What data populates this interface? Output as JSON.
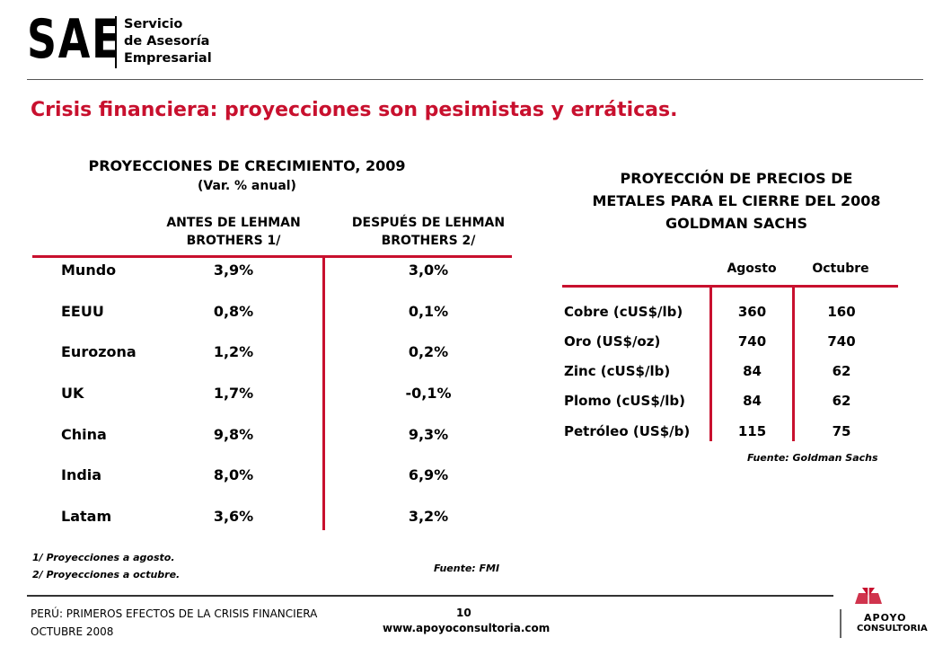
{
  "header": {
    "logo_main": "SAE",
    "logo_sub": [
      "Servicio",
      "de Asesoría",
      "Empresarial"
    ]
  },
  "title": "Crisis financiera: proyecciones son pesimistas y erráticas.",
  "growth_table": {
    "title": "PROYECCIONES DE CRECIMIENTO, 2009",
    "subtitle": "(Var. % anual)",
    "col_antes": [
      "ANTES DE LEHMAN",
      "BROTHERS 1/"
    ],
    "col_despues": [
      "DESPUÉS DE LEHMAN",
      "BROTHERS 2/"
    ],
    "rows": [
      {
        "country": "Mundo",
        "antes": "3,9%",
        "despues": "3,0%"
      },
      {
        "country": "EEUU",
        "antes": "0,8%",
        "despues": "0,1%"
      },
      {
        "country": "Eurozona",
        "antes": "1,2%",
        "despues": "0,2%"
      },
      {
        "country": "UK",
        "antes": "1,7%",
        "despues": "-0,1%"
      },
      {
        "country": "China",
        "antes": "9,8%",
        "despues": "9,3%"
      },
      {
        "country": "India",
        "antes": "8,0%",
        "despues": "6,9%"
      },
      {
        "country": "Latam",
        "antes": "3,6%",
        "despues": "3,2%"
      }
    ],
    "notes": [
      "1/ Proyecciones a agosto.",
      "2/ Proyecciones a octubre."
    ],
    "source": "Fuente: FMI"
  },
  "metals_table": {
    "title_lines": [
      "PROYECCIÓN DE PRECIOS DE",
      "METALES PARA EL CIERRE DEL 2008",
      "GOLDMAN SACHS"
    ],
    "col_agosto": "Agosto",
    "col_octubre": "Octubre",
    "rows": [
      {
        "name": "Cobre (cUS$/lb)",
        "agosto": "360",
        "octubre": "160"
      },
      {
        "name": "Oro (US$/oz)",
        "agosto": "740",
        "octubre": "740"
      },
      {
        "name": "Zinc (cUS$/lb)",
        "agosto": "84",
        "octubre": "62"
      },
      {
        "name": "Plomo (cUS$/lb)",
        "agosto": "84",
        "octubre": "62"
      },
      {
        "name": "Petróleo (US$/b)",
        "agosto": "115",
        "octubre": "75"
      }
    ],
    "source": "Fuente: Goldman Sachs"
  },
  "footer": {
    "left_lines": [
      "PERÚ: PRIMEROS EFECTOS DE LA CRISIS FINANCIERA",
      "OCTUBRE 2008"
    ],
    "page_number": "10",
    "website": "www.apoyoconsultoria.com",
    "brand_line1": "APOYO",
    "brand_line2": "CONSULTORIA"
  },
  "colors": {
    "accent": "#c8102e"
  }
}
